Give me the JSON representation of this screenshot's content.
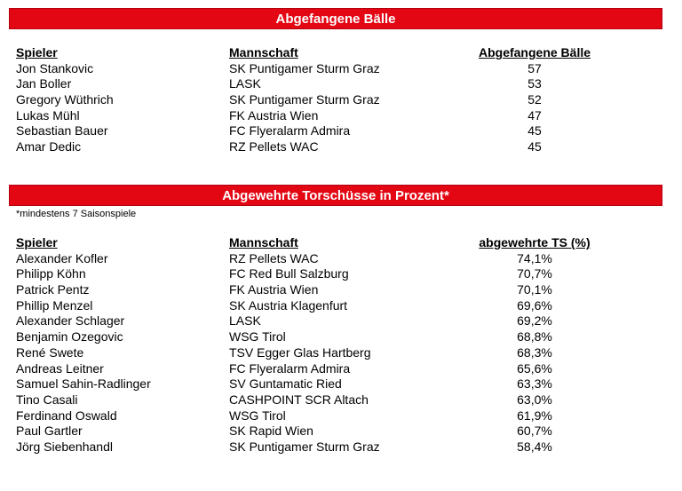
{
  "section1": {
    "title": "Abgefangene Bälle",
    "headers": {
      "player": "Spieler",
      "team": "Mannschaft",
      "value": "Abgefangene Bälle"
    },
    "rows": [
      {
        "player": "Jon Stankovic",
        "team": "SK Puntigamer Sturm Graz",
        "value": "57"
      },
      {
        "player": "Jan Boller",
        "team": "LASK",
        "value": "53"
      },
      {
        "player": "Gregory Wüthrich",
        "team": "SK Puntigamer Sturm Graz",
        "value": "52"
      },
      {
        "player": "Lukas Mühl",
        "team": "FK Austria Wien",
        "value": "47"
      },
      {
        "player": "Sebastian Bauer",
        "team": "FC Flyeralarm Admira",
        "value": "45"
      },
      {
        "player": "Amar Dedic",
        "team": "RZ Pellets WAC",
        "value": "45"
      }
    ]
  },
  "section2": {
    "title": "Abgewehrte Torschüsse in Prozent*",
    "note": "*mindestens 7 Saisonspiele",
    "headers": {
      "player": "Spieler",
      "team": "Mannschaft",
      "value": "abgewehrte TS (%)"
    },
    "rows": [
      {
        "player": "Alexander Kofler",
        "team": "RZ Pellets WAC",
        "value": "74,1%"
      },
      {
        "player": "Philipp Köhn",
        "team": "FC Red Bull Salzburg",
        "value": "70,7%"
      },
      {
        "player": "Patrick Pentz",
        "team": "FK Austria Wien",
        "value": "70,1%"
      },
      {
        "player": "Phillip Menzel",
        "team": "SK Austria Klagenfurt",
        "value": "69,6%"
      },
      {
        "player": "Alexander Schlager",
        "team": "LASK",
        "value": "69,2%"
      },
      {
        "player": "Benjamin Ozegovic",
        "team": "WSG Tirol",
        "value": "68,8%"
      },
      {
        "player": "René Swete",
        "team": "TSV Egger Glas Hartberg",
        "value": "68,3%"
      },
      {
        "player": "Andreas Leitner",
        "team": "FC Flyeralarm Admira",
        "value": "65,6%"
      },
      {
        "player": "Samuel Sahin-Radlinger",
        "team": "SV Guntamatic Ried",
        "value": "63,3%"
      },
      {
        "player": "Tino Casali",
        "team": "CASHPOINT SCR Altach",
        "value": "63,0%"
      },
      {
        "player": "Ferdinand Oswald",
        "team": "WSG Tirol",
        "value": "61,9%"
      },
      {
        "player": "Paul Gartler",
        "team": "SK Rapid Wien",
        "value": "60,7%"
      },
      {
        "player": "Jörg Siebenhandl",
        "team": "SK Puntigamer Sturm Graz",
        "value": "58,4%"
      }
    ]
  }
}
